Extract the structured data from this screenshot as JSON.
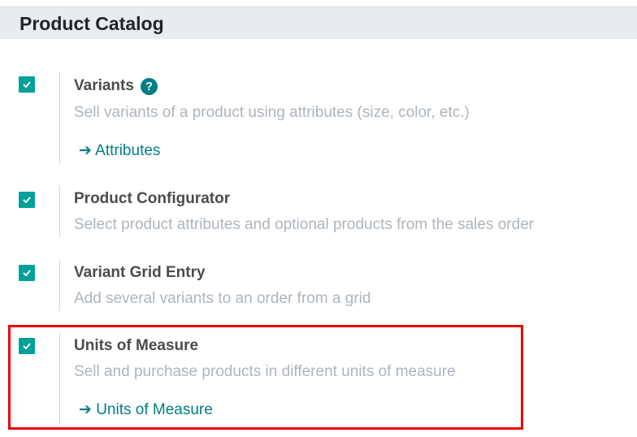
{
  "section_title": "Product Catalog",
  "settings": [
    {
      "title": "Variants",
      "help": "?",
      "description": "Sell variants of a product using attributes (size, color, etc.)",
      "link": "Attributes",
      "checked": true
    },
    {
      "title": "Product Configurator",
      "description": "Select product attributes and optional products from the sales order",
      "checked": true
    },
    {
      "title": "Variant Grid Entry",
      "description": "Add several variants to an order from a grid",
      "checked": true
    },
    {
      "title": "Units of Measure",
      "description": "Sell and purchase products in different units of measure",
      "link": "Units of Measure",
      "checked": true
    }
  ],
  "colors": {
    "accent": "#01a09a",
    "link": "#017e84",
    "highlight": "#e8000b"
  }
}
